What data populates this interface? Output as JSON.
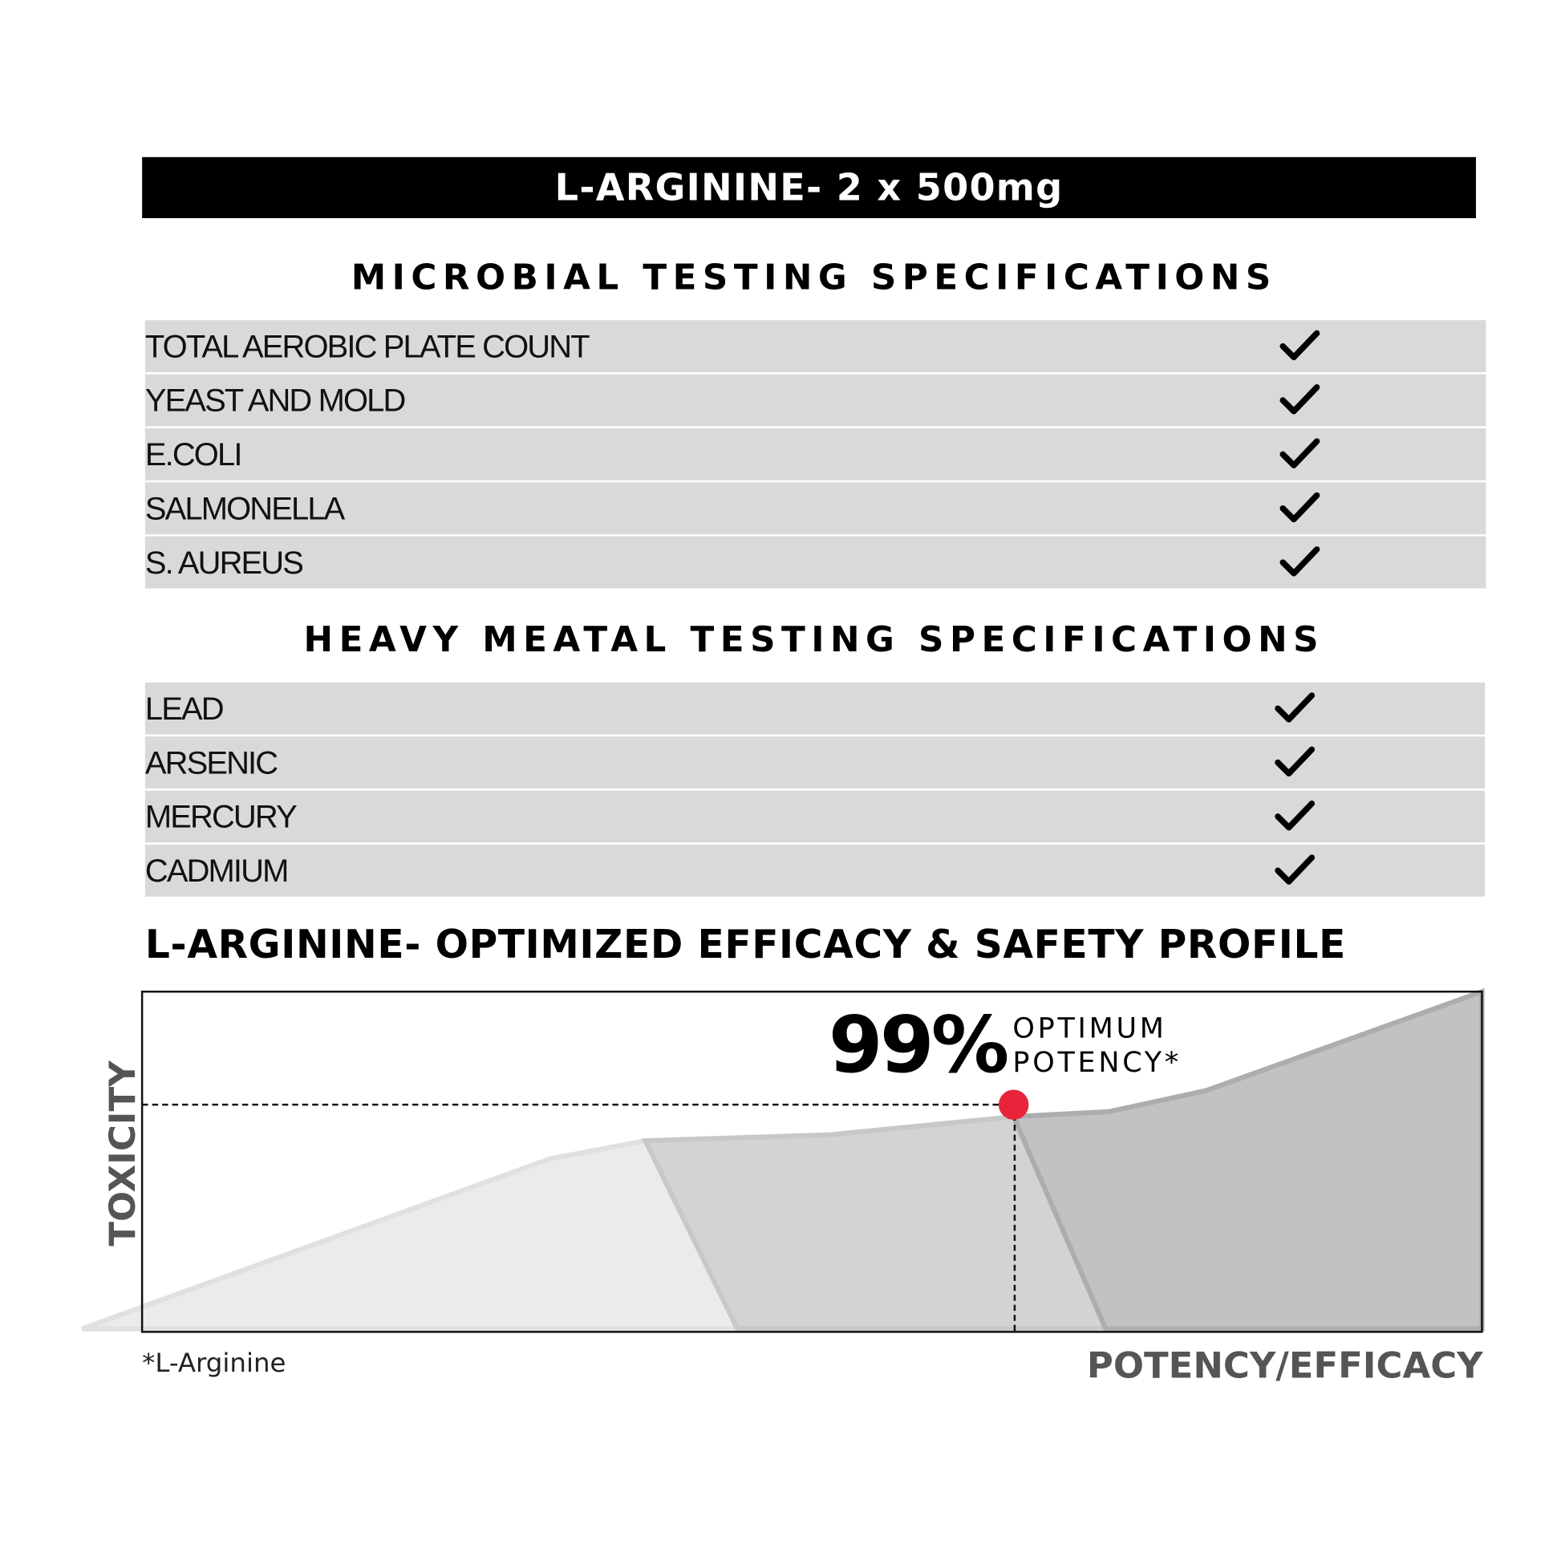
{
  "title": "L-ARGININE- 2 x 500mg",
  "microbial": {
    "heading": "MICROBIAL TESTING SPECIFICATIONS",
    "items": [
      {
        "label": "TOTAL AEROBIC PLATE COUNT",
        "status": "check-icon"
      },
      {
        "label": "YEAST AND MOLD",
        "status": "check-icon"
      },
      {
        "label": "E.COLI",
        "status": "check-icon"
      },
      {
        "label": "SALMONELLA",
        "status": "check-icon"
      },
      {
        "label": "S. AUREUS",
        "status": "check-icon"
      }
    ]
  },
  "heavy_metal": {
    "heading": "HEAVY MEATAL TESTING SPECIFICATIONS",
    "items": [
      {
        "label": "LEAD",
        "status": "check-icon"
      },
      {
        "label": "ARSENIC",
        "status": "check-icon"
      },
      {
        "label": "MERCURY",
        "status": "check-icon"
      },
      {
        "label": "CADMIUM",
        "status": "check-icon"
      }
    ]
  },
  "profile": {
    "title": "L-ARGININE- OPTIMIZED EFFICACY & SAFETY PROFILE",
    "highlight_value": "99%",
    "highlight_line1": "OPTIMUM",
    "highlight_line2": "POTENCY*",
    "y_label": "TOXICITY",
    "x_label": "POTENCY/EFFICACY",
    "footnote": "*L-Arginine",
    "marker_color": "#e8233a"
  }
}
